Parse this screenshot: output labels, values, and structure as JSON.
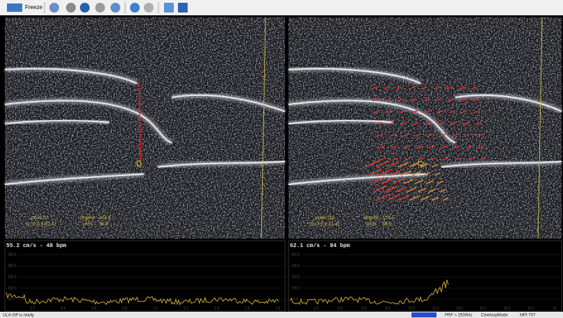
{
  "toolbar": {
    "freeze": "Freeze"
  },
  "panels": [
    {
      "point": "point 27",
      "coords": "(x:-0.6 y:31.4)",
      "degree_label": "degree",
      "degree": "143.6",
      "speed_label": "cm/s",
      "speed": "35.6",
      "trace_header": "55.2 cm/s -  48 bpm",
      "trace_yticks": [
        "250.0",
        "200.0",
        "150.0",
        "100.0",
        "50.0"
      ],
      "trace_xticks": [
        "0.2",
        "0.4",
        "0.6",
        "0.8",
        "1.0",
        "1.2",
        "1.4",
        "1.6",
        "1.8"
      ]
    },
    {
      "point": "point 110",
      "coords": "(x:-0.6 y:31.4)",
      "degree_label": "degree",
      "degree": "155.1",
      "speed_label": "cm/s",
      "speed": "59.9",
      "trace_header": "62.1 cm/s -  84 bpm",
      "trace_yticks": [
        "250.0",
        "200.0",
        "150.0",
        "100.0",
        "50.0"
      ],
      "trace_xticks": [
        "2.0",
        "4.0",
        "6.0",
        "8.0",
        "10.0",
        "12.0",
        "14.0",
        "16.0",
        "18.0",
        "20.0",
        "22"
      ]
    }
  ],
  "status": {
    "message": "ULA-OP is ready",
    "prf": "PRF = 2500Hz",
    "mode": "CineloopMode",
    "extra": "MPI 707"
  }
}
